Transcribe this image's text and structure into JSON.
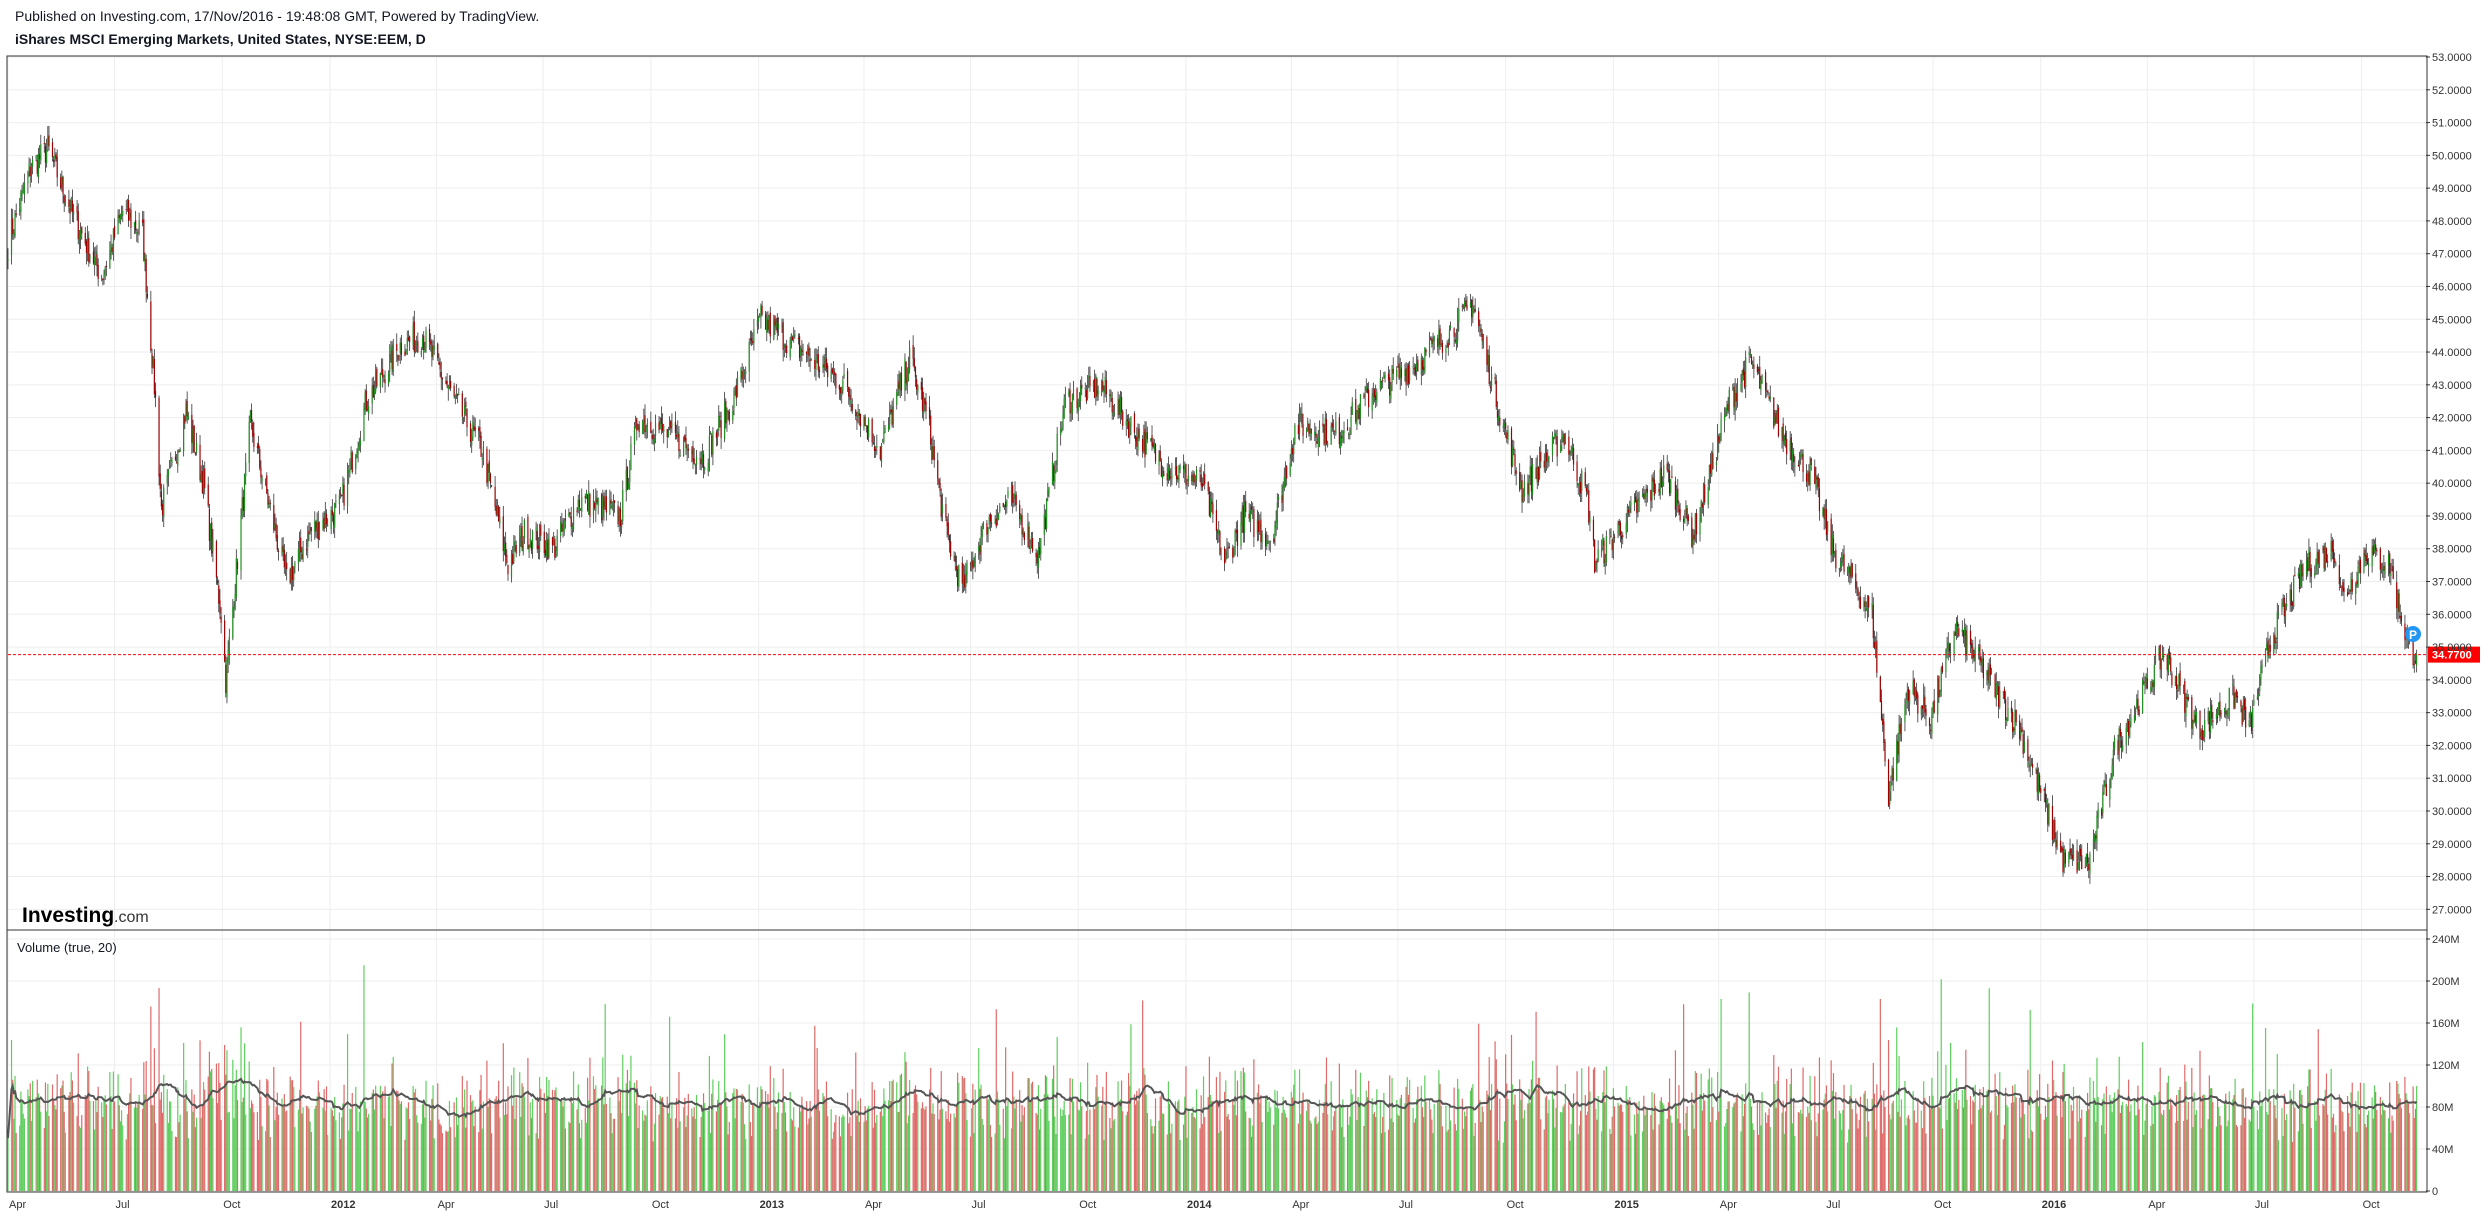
{
  "header": {
    "published": "Published on Investing.com, 17/Nov/2016 - 19:48:08 GMT, Powered by TradingView.",
    "title": "iShares MSCI Emerging Markets, United States, NYSE:EEM, D"
  },
  "logo": {
    "main": "Investing",
    "suffix": ".com"
  },
  "volume_panel": {
    "label": "Volume (true, 20)"
  },
  "price_badge": {
    "value": "34.7700",
    "color": "#ff0000"
  },
  "p_marker": {
    "label": "P",
    "color": "#2196f3"
  },
  "colors": {
    "up": "#1e8f1e",
    "down": "#a00000",
    "vol_up": "#5fcf5f",
    "vol_down": "#e06a6a",
    "vol_ma": "#555555",
    "grid": "#eeeeee"
  },
  "chart_data": {
    "type": "candlestick",
    "title": "iShares MSCI Emerging Markets, United States, NYSE:EEM, D",
    "price_axis": {
      "ylim": [
        26.4,
        53.0
      ],
      "ticks": [
        "53.0000",
        "52.0000",
        "51.0000",
        "50.0000",
        "49.0000",
        "48.0000",
        "47.0000",
        "46.0000",
        "45.0000",
        "44.0000",
        "43.0000",
        "42.0000",
        "41.0000",
        "40.0000",
        "39.0000",
        "38.0000",
        "37.0000",
        "36.0000",
        "35.0000",
        "34.0000",
        "33.0000",
        "32.0000",
        "31.0000",
        "30.0000",
        "29.0000",
        "28.0000",
        "27.0000"
      ]
    },
    "volume_axis": {
      "ylim": [
        0,
        240
      ],
      "unit": "M",
      "ticks": [
        "240M",
        "200M",
        "160M",
        "120M",
        "80M",
        "40M",
        "0"
      ]
    },
    "time_axis": {
      "start": "2011-04",
      "end": "2016-11",
      "ticks": [
        {
          "label": "Apr",
          "bold": false
        },
        {
          "label": "Jul",
          "bold": false
        },
        {
          "label": "Oct",
          "bold": false
        },
        {
          "label": "2012",
          "bold": true
        },
        {
          "label": "Apr",
          "bold": false
        },
        {
          "label": "Jul",
          "bold": false
        },
        {
          "label": "Oct",
          "bold": false
        },
        {
          "label": "2013",
          "bold": true
        },
        {
          "label": "Apr",
          "bold": false
        },
        {
          "label": "Jul",
          "bold": false
        },
        {
          "label": "Oct",
          "bold": false
        },
        {
          "label": "2014",
          "bold": true
        },
        {
          "label": "Apr",
          "bold": false
        },
        {
          "label": "Jul",
          "bold": false
        },
        {
          "label": "Oct",
          "bold": false
        },
        {
          "label": "2015",
          "bold": true
        },
        {
          "label": "Apr",
          "bold": false
        },
        {
          "label": "Jul",
          "bold": false
        },
        {
          "label": "Oct",
          "bold": false
        },
        {
          "label": "2016",
          "bold": true
        },
        {
          "label": "Apr",
          "bold": false
        },
        {
          "label": "Jul",
          "bold": false
        },
        {
          "label": "Oct",
          "bold": false
        }
      ]
    },
    "last_price": 34.77,
    "price_path": [
      [
        "2011-04-01",
        47.3
      ],
      [
        "2011-04-20",
        49.6
      ],
      [
        "2011-05-05",
        50.2
      ],
      [
        "2011-05-25",
        48.3
      ],
      [
        "2011-06-20",
        46.3
      ],
      [
        "2011-07-08",
        48.3
      ],
      [
        "2011-07-25",
        47.6
      ],
      [
        "2011-08-05",
        42.5
      ],
      [
        "2011-08-10",
        39.2
      ],
      [
        "2011-08-31",
        42.2
      ],
      [
        "2011-09-15",
        40.0
      ],
      [
        "2011-09-30",
        36.0
      ],
      [
        "2011-10-04",
        34.0
      ],
      [
        "2011-10-25",
        41.8
      ],
      [
        "2011-11-25",
        37.0
      ],
      [
        "2011-12-15",
        38.5
      ],
      [
        "2012-01-10",
        39.3
      ],
      [
        "2012-02-01",
        42.5
      ],
      [
        "2012-03-01",
        44.2
      ],
      [
        "2012-03-20",
        44.5
      ],
      [
        "2012-04-15",
        42.6
      ],
      [
        "2012-05-10",
        41.0
      ],
      [
        "2012-06-01",
        37.5
      ],
      [
        "2012-06-15",
        38.5
      ],
      [
        "2012-07-10",
        38.0
      ],
      [
        "2012-08-01",
        39.5
      ],
      [
        "2012-09-05",
        39.0
      ],
      [
        "2012-09-20",
        42.0
      ],
      [
        "2012-10-15",
        41.5
      ],
      [
        "2012-11-15",
        40.8
      ],
      [
        "2012-12-10",
        42.5
      ],
      [
        "2013-01-03",
        45.0
      ],
      [
        "2013-02-01",
        44.2
      ],
      [
        "2013-03-15",
        43.0
      ],
      [
        "2013-04-15",
        41.0
      ],
      [
        "2013-05-10",
        43.8
      ],
      [
        "2013-05-25",
        42.0
      ],
      [
        "2013-06-10",
        38.5
      ],
      [
        "2013-06-24",
        36.8
      ],
      [
        "2013-07-15",
        38.8
      ],
      [
        "2013-08-05",
        39.5
      ],
      [
        "2013-08-28",
        37.8
      ],
      [
        "2013-09-20",
        42.5
      ],
      [
        "2013-10-20",
        43.0
      ],
      [
        "2013-11-20",
        41.5
      ],
      [
        "2013-12-15",
        40.5
      ],
      [
        "2014-01-15",
        40.0
      ],
      [
        "2014-02-03",
        37.6
      ],
      [
        "2014-02-20",
        39.0
      ],
      [
        "2014-03-15",
        38.3
      ],
      [
        "2014-04-05",
        41.8
      ],
      [
        "2014-05-10",
        41.5
      ],
      [
        "2014-06-10",
        42.8
      ],
      [
        "2014-07-15",
        43.6
      ],
      [
        "2014-08-20",
        44.8
      ],
      [
        "2014-09-03",
        45.5
      ],
      [
        "2014-09-25",
        42.3
      ],
      [
        "2014-10-15",
        39.8
      ],
      [
        "2014-11-20",
        41.5
      ],
      [
        "2014-12-10",
        39.5
      ],
      [
        "2014-12-16",
        37.6
      ],
      [
        "2015-01-15",
        39.0
      ],
      [
        "2015-02-15",
        40.3
      ],
      [
        "2015-03-10",
        38.4
      ],
      [
        "2015-04-10",
        42.5
      ],
      [
        "2015-04-28",
        43.7
      ],
      [
        "2015-05-25",
        41.5
      ],
      [
        "2015-06-20",
        40.2
      ],
      [
        "2015-07-07",
        38.0
      ],
      [
        "2015-08-10",
        36.0
      ],
      [
        "2015-08-24",
        30.5
      ],
      [
        "2015-09-10",
        33.8
      ],
      [
        "2015-09-29",
        32.8
      ],
      [
        "2015-10-20",
        35.6
      ],
      [
        "2015-11-10",
        34.5
      ],
      [
        "2015-12-14",
        32.5
      ],
      [
        "2016-01-20",
        28.5
      ],
      [
        "2016-02-11",
        28.4
      ],
      [
        "2016-03-05",
        32.0
      ],
      [
        "2016-04-15",
        34.8
      ],
      [
        "2016-05-15",
        32.5
      ],
      [
        "2016-06-15",
        33.5
      ],
      [
        "2016-06-27",
        32.5
      ],
      [
        "2016-07-15",
        35.2
      ],
      [
        "2016-08-15",
        37.5
      ],
      [
        "2016-09-08",
        38.0
      ],
      [
        "2016-09-15",
        36.5
      ],
      [
        "2016-10-05",
        37.9
      ],
      [
        "2016-10-25",
        37.5
      ],
      [
        "2016-11-10",
        35.0
      ],
      [
        "2016-11-17",
        34.77
      ]
    ]
  }
}
